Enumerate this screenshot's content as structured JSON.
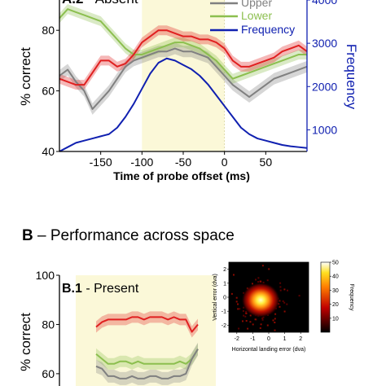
{
  "panel_a2": {
    "label_bold": "A.2",
    "label_rest": " - Absent"
  },
  "section_b": {
    "letter": "B",
    "title": " – Performance across space"
  },
  "panel_b1": {
    "label_bold": "B.1",
    "label_rest": " - Present"
  },
  "colors": {
    "upper": "#808080",
    "lower": "#8cbf4f",
    "fused": "#e02020",
    "frequency": "#1020b0",
    "highlight": "#fbf8d8"
  },
  "chart_data": [
    {
      "type": "line",
      "panel": "A.2 - Absent",
      "xlabel": "Time of probe offset (ms)",
      "ylabel": "% correct",
      "y2label": "Frequency",
      "xlim": [
        -200,
        100
      ],
      "ylim": [
        40,
        90
      ],
      "y2lim": [
        500,
        4000
      ],
      "xticks": [
        -150,
        -100,
        -50,
        0,
        50
      ],
      "yticks": [
        40,
        60,
        80
      ],
      "y2ticks": [
        1000,
        2000,
        3000,
        4000
      ],
      "highlight_x": [
        -100,
        0
      ],
      "legend": {
        "position": "top-right",
        "entries": [
          "Upper",
          "Lower",
          "Frequency"
        ]
      },
      "x": [
        -200,
        -190,
        -180,
        -170,
        -160,
        -150,
        -140,
        -130,
        -120,
        -110,
        -100,
        -90,
        -80,
        -70,
        -60,
        -50,
        -40,
        -30,
        -20,
        -10,
        0,
        10,
        20,
        30,
        40,
        50,
        60,
        70,
        80,
        90,
        100
      ],
      "series": [
        {
          "name": "Upper",
          "color": "#808080",
          "axis": "left",
          "values": [
            65,
            67,
            63,
            60,
            54,
            57,
            60,
            64,
            68,
            70,
            71,
            72,
            73,
            73,
            74,
            73,
            73,
            72,
            71,
            68,
            65,
            62,
            60,
            58,
            60,
            62,
            64,
            65,
            66,
            67,
            68
          ]
        },
        {
          "name": "Lower",
          "color": "#8cbf4f",
          "axis": "left",
          "values": [
            84,
            87,
            86,
            85,
            84,
            83,
            80,
            77,
            74,
            72,
            72,
            73,
            74,
            75,
            76,
            76,
            75,
            74,
            72,
            70,
            67,
            64,
            65,
            66,
            67,
            68,
            69,
            70,
            71,
            72,
            72
          ]
        },
        {
          "name": "",
          "color": "#e02020",
          "axis": "left",
          "values": [
            64,
            63,
            62,
            62,
            66,
            70,
            70,
            68,
            69,
            72,
            76,
            78,
            80,
            80,
            79,
            78,
            78,
            77,
            77,
            76,
            74,
            70,
            68,
            68,
            69,
            70,
            71,
            73,
            74,
            75,
            73
          ]
        },
        {
          "name": "Frequency",
          "color": "#1020b0",
          "axis": "right",
          "values": [
            500,
            600,
            700,
            750,
            800,
            850,
            900,
            1050,
            1300,
            1600,
            1950,
            2300,
            2550,
            2650,
            2600,
            2500,
            2400,
            2250,
            2050,
            1800,
            1550,
            1300,
            1050,
            900,
            800,
            750,
            700,
            650,
            620,
            600,
            580
          ]
        }
      ]
    },
    {
      "type": "line",
      "panel": "B.1 - Present",
      "ylabel": "% correct",
      "ylim": [
        55,
        100
      ],
      "yticks": [
        60,
        80,
        100
      ],
      "x": [
        0,
        1,
        2,
        3,
        4,
        5,
        6,
        7,
        8,
        9,
        10,
        11,
        12,
        13,
        14,
        15,
        16,
        17
      ],
      "series": [
        {
          "name": "",
          "color": "#e02020",
          "values": [
            79,
            81,
            82,
            82,
            82,
            82,
            83,
            83,
            82,
            83,
            83,
            83,
            82,
            83,
            82,
            82,
            77,
            80
          ]
        },
        {
          "name": "",
          "color": "#8cbf4f",
          "values": [
            68,
            66,
            64,
            64,
            65,
            65,
            64,
            65,
            64,
            64,
            64,
            64,
            64,
            64,
            65,
            64,
            66,
            70
          ]
        },
        {
          "name": "",
          "color": "#808080",
          "values": [
            63,
            62,
            59,
            59,
            58,
            58,
            59,
            58,
            58,
            59,
            59,
            58,
            58,
            59,
            59,
            60,
            66,
            70
          ]
        }
      ]
    },
    {
      "type": "heatmap",
      "xlabel": "Horizontal landing error (dva)",
      "ylabel": "Vertical error (dva)",
      "colorbar_label": "Frequency",
      "xticks": [
        -2,
        -1,
        0,
        1,
        2
      ],
      "yticks": [
        -2,
        -1,
        0,
        1,
        2
      ],
      "colorbar_ticks": [
        10,
        20,
        30,
        40,
        50
      ],
      "clim": [
        0,
        50
      ],
      "peak": {
        "x": -0.5,
        "y": -0.2
      }
    }
  ]
}
